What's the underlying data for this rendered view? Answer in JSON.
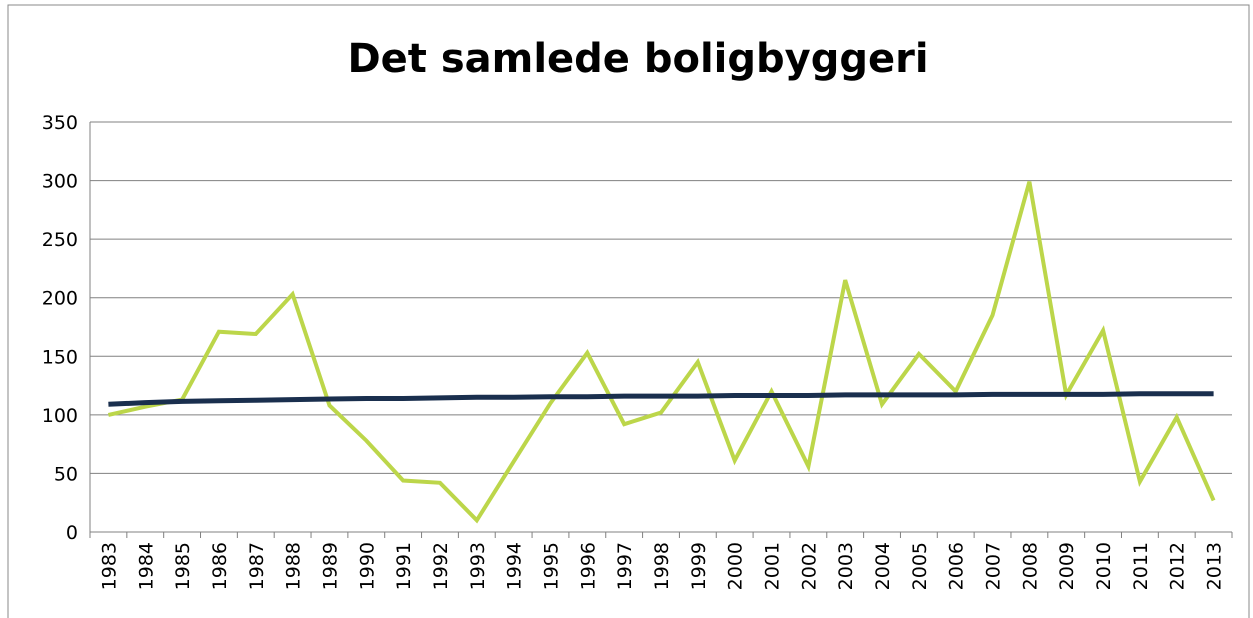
{
  "chart_data": {
    "type": "line",
    "title": "Det samlede boligbyggeri",
    "categories": [
      "1983",
      "1984",
      "1985",
      "1986",
      "1987",
      "1988",
      "1989",
      "1990",
      "1991",
      "1992",
      "1993",
      "1994",
      "1995",
      "1996",
      "1997",
      "1998",
      "1999",
      "2000",
      "2001",
      "2002",
      "2003",
      "2004",
      "2005",
      "2006",
      "2007",
      "2008",
      "2009",
      "2010",
      "2011",
      "2012",
      "2013"
    ],
    "series": [
      {
        "color": "#bcd64a",
        "width": 4,
        "values": [
          100,
          107,
          113,
          171,
          169,
          203,
          108,
          78,
          44,
          42,
          10,
          60,
          110,
          153,
          92,
          102,
          145,
          61,
          120,
          56,
          215,
          109,
          152,
          120,
          185,
          299,
          117,
          172,
          43,
          98,
          27
        ]
      },
      {
        "color": "#1a2f4e",
        "width": 5,
        "values": [
          109,
          110.5,
          111.5,
          112,
          112.5,
          113,
          113.5,
          114,
          114,
          114.5,
          115,
          115,
          115.5,
          115.5,
          116,
          116,
          116,
          116.5,
          116.5,
          116.5,
          117,
          117,
          117,
          117,
          117.5,
          117.5,
          117.5,
          117.5,
          118,
          118,
          118
        ]
      }
    ],
    "ylim": [
      0,
      350
    ],
    "yticks": [
      0,
      50,
      100,
      150,
      200,
      250,
      300,
      350
    ],
    "grid": true
  }
}
